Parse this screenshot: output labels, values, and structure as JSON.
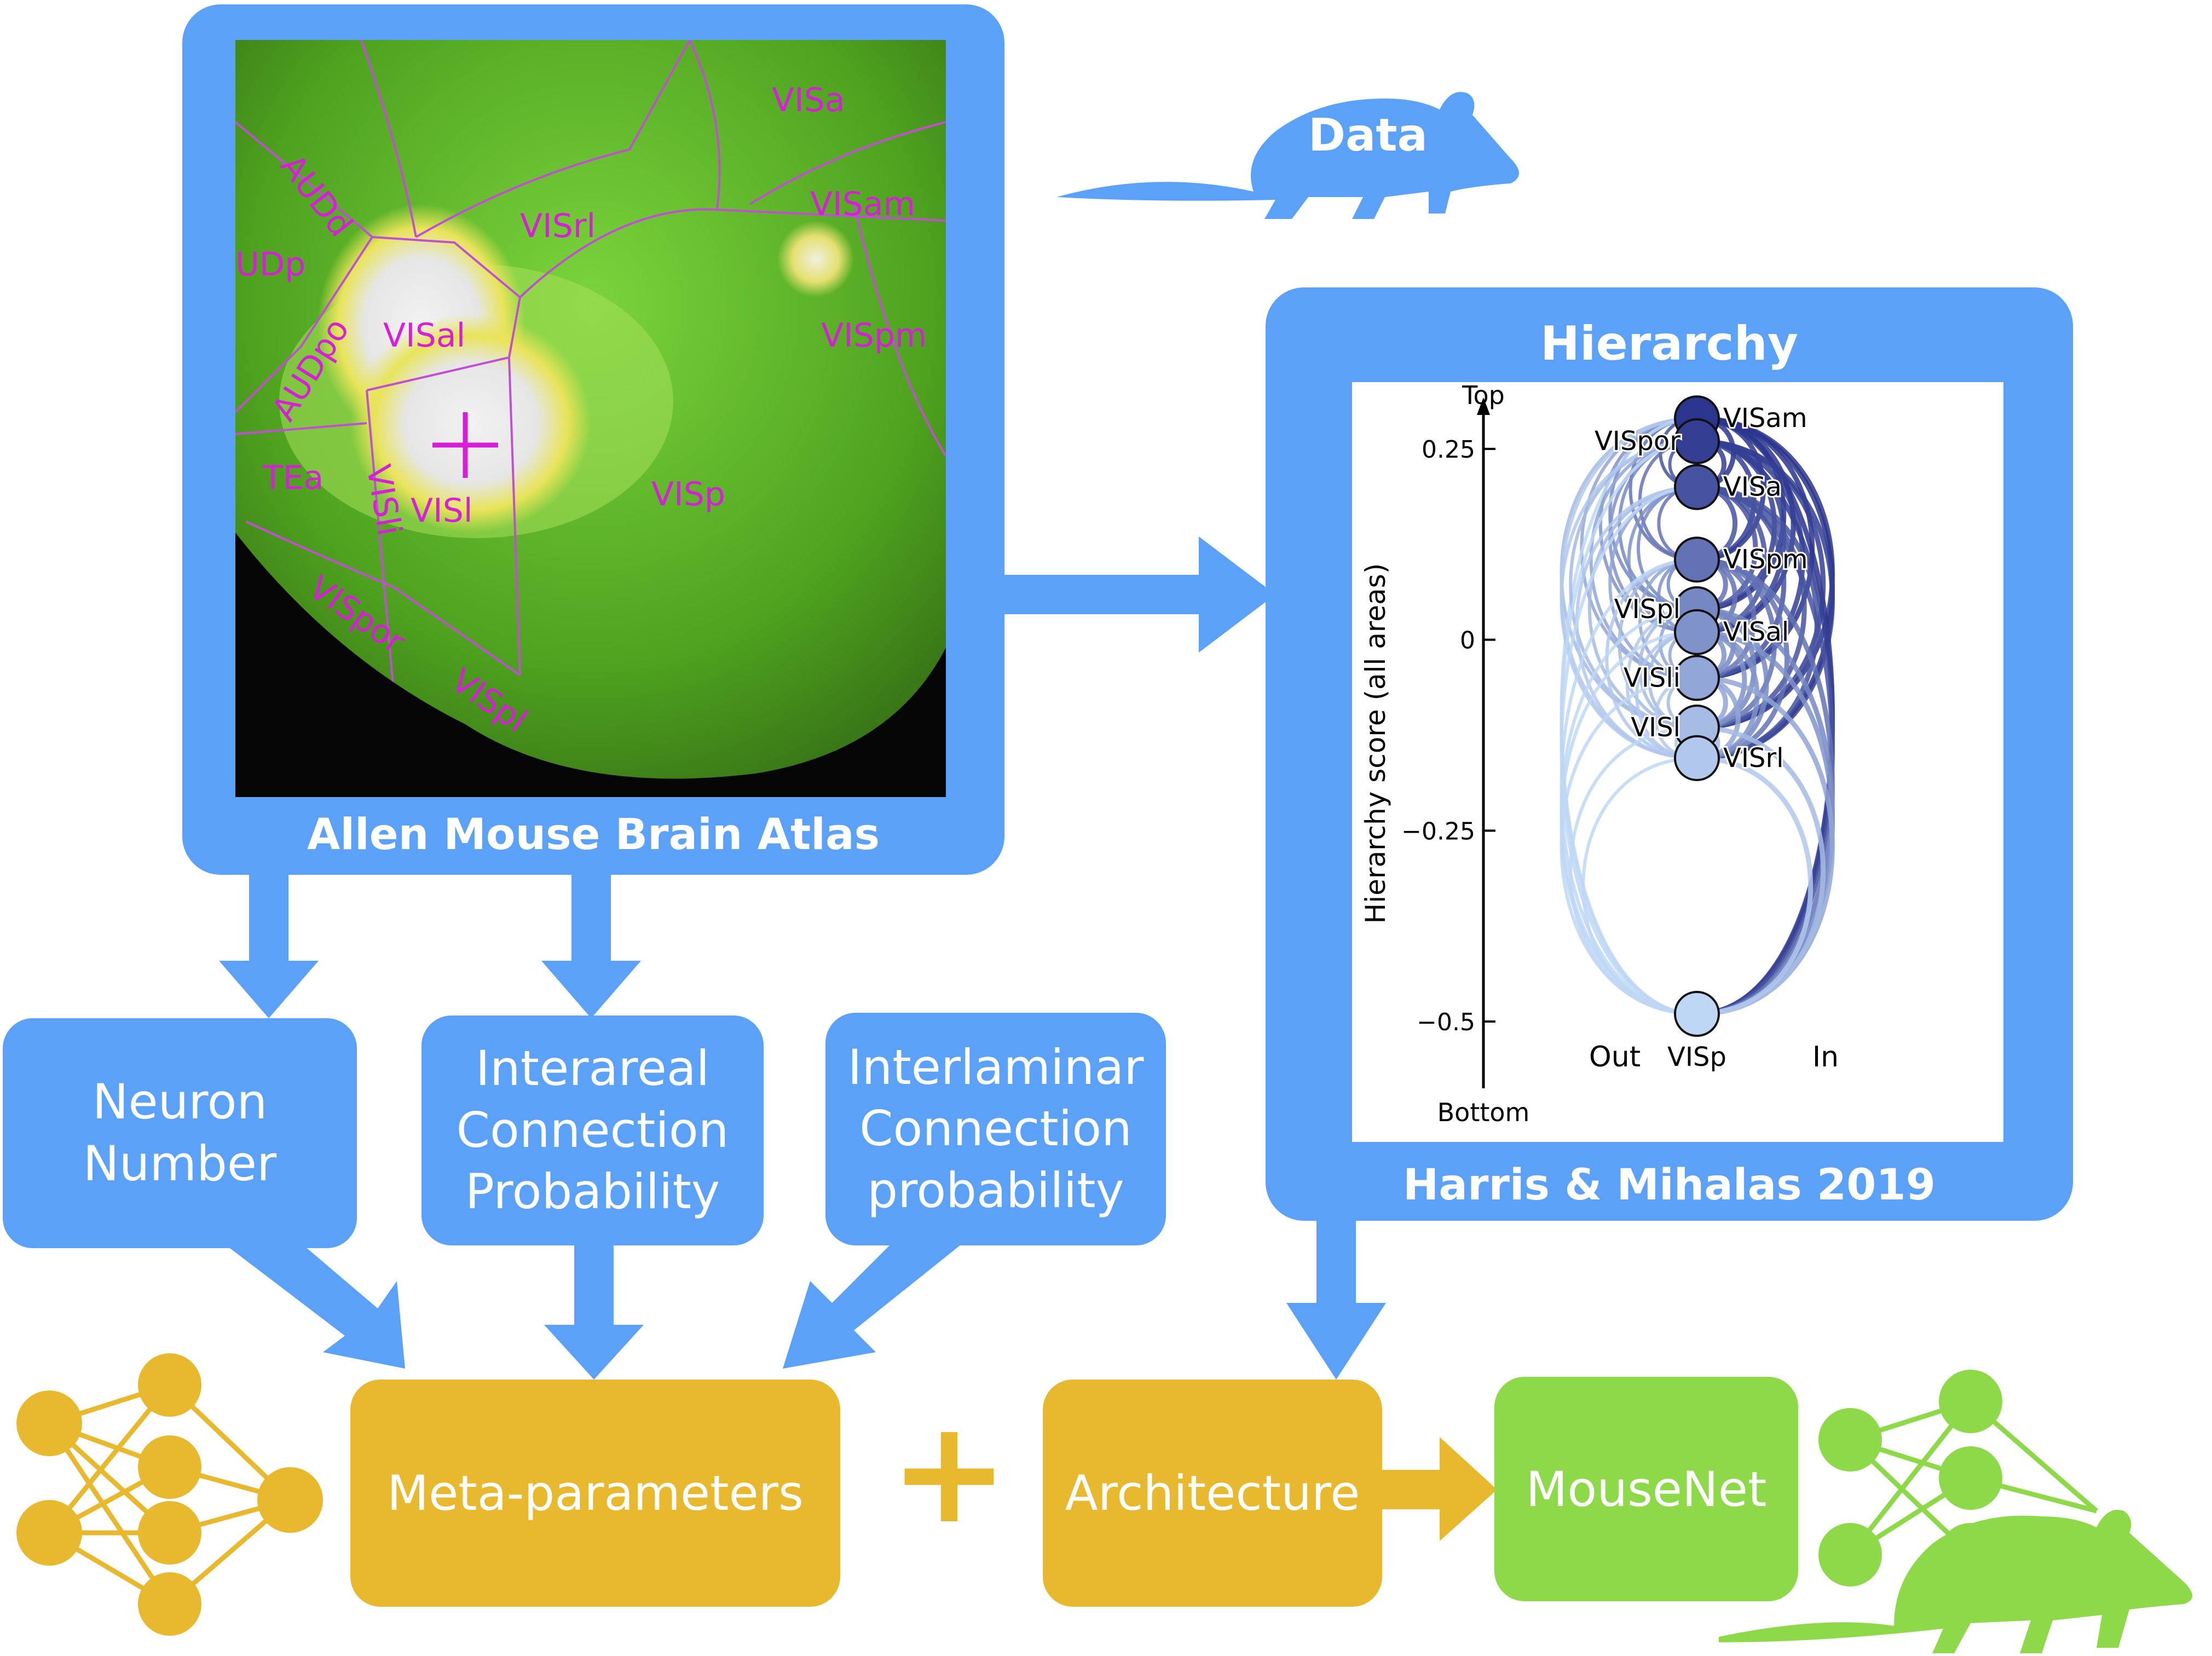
{
  "atlas": {
    "caption": "Allen Mouse Brain Atlas",
    "regions": {
      "visa": "VISa",
      "visam": "VISam",
      "visrl": "VISrl",
      "audd": "AUDd",
      "audp": "UDp",
      "visal": "VISal",
      "vispm": "VISpm",
      "audpo": "AUDpo",
      "tea": "TEa",
      "visli": "VISli",
      "visl": "VISl",
      "visp": "VISp",
      "vispor": "VISpor",
      "vispl": "VISpl"
    }
  },
  "data_label": "Data",
  "hierarchy": {
    "title": "Hierarchy",
    "caption": "Harris & Mihalas 2019",
    "ylabel": "Hierarchy score (all areas)",
    "top_label": "Top",
    "bottom_label": "Bottom",
    "out_label": "Out",
    "in_label": "In",
    "ticks": [
      "0.25",
      "0",
      "−0.25",
      "−0.5"
    ],
    "nodes": [
      "VISam",
      "VISpor",
      "VISa",
      "VISpm",
      "VISpl",
      "VISal",
      "VISli",
      "VISl",
      "VISrl",
      "VISp"
    ]
  },
  "boxes": {
    "neuron_number": "Neuron\nNumber",
    "interareal": "Interareal\nConnection\nProbability",
    "interlaminar": "Interlaminar\nConnection\nprobability",
    "meta": "Meta-parameters",
    "plus": "+",
    "architecture": "Architecture",
    "mousenet": "MouseNet"
  },
  "colors": {
    "box_blue": "#5ba1f7",
    "gold": "#e8b92e",
    "green": "#8dd94a",
    "region_label": "#d61fd6"
  },
  "chart_data": {
    "type": "scatter",
    "title": "",
    "ylabel": "Hierarchy score (all areas)",
    "ylim": [
      -0.5,
      0.3
    ],
    "yticks": [
      0.25,
      0,
      -0.25,
      -0.5
    ],
    "points": [
      {
        "label": "VISam",
        "y": 0.29
      },
      {
        "label": "VISpor",
        "y": 0.26
      },
      {
        "label": "VISa",
        "y": 0.2
      },
      {
        "label": "VISpm",
        "y": 0.105
      },
      {
        "label": "VISpl",
        "y": 0.04
      },
      {
        "label": "VISal",
        "y": 0.01
      },
      {
        "label": "VISli",
        "y": -0.05
      },
      {
        "label": "VISl",
        "y": -0.115
      },
      {
        "label": "VISrl",
        "y": -0.155
      },
      {
        "label": "VISp",
        "y": -0.49
      }
    ]
  }
}
